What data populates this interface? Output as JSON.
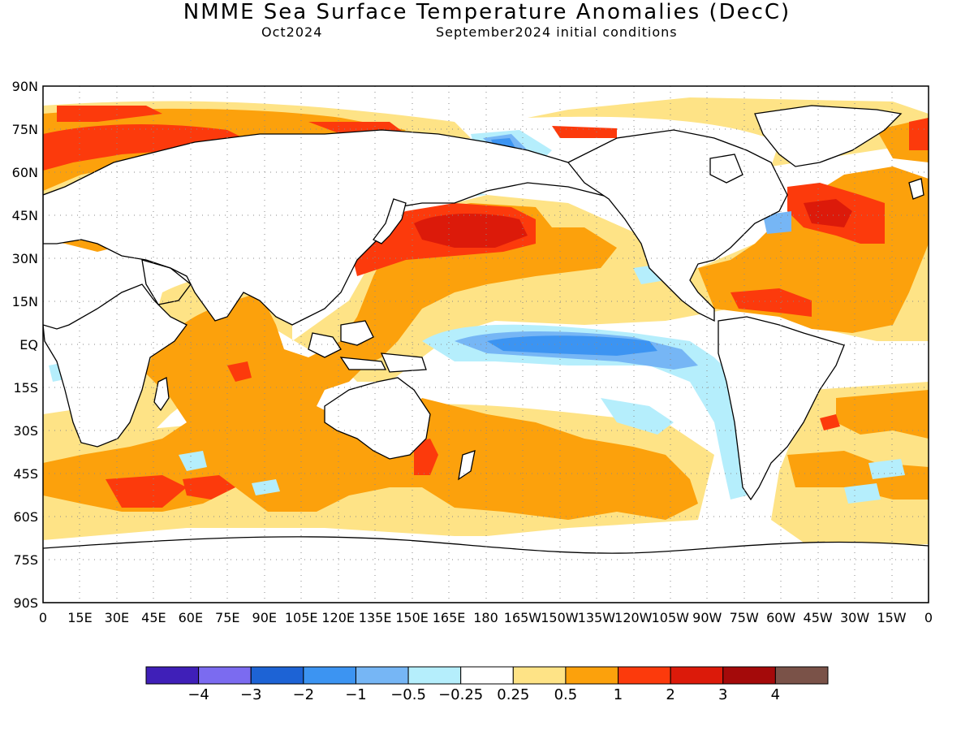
{
  "header": {
    "title": "NMME Sea Surface Temperature Anomalies (DecC)",
    "lead_month": "Oct2024",
    "initial_conditions": "September2024 initial conditions"
  },
  "map": {
    "projection": "equirectangular",
    "lon_range": [
      0,
      360
    ],
    "lat_range": [
      -90,
      90
    ],
    "gridlines": "dotted",
    "y_ticks": [
      "90N",
      "75N",
      "60N",
      "45N",
      "30N",
      "15N",
      "EQ",
      "15S",
      "30S",
      "45S",
      "60S",
      "75S",
      "90S"
    ],
    "x_ticks": [
      "0",
      "15E",
      "30E",
      "45E",
      "60E",
      "75E",
      "90E",
      "105E",
      "120E",
      "135E",
      "150E",
      "165E",
      "180",
      "165W",
      "150W",
      "135W",
      "120W",
      "105W",
      "90W",
      "75W",
      "60W",
      "45W",
      "30W",
      "15W",
      "0"
    ]
  },
  "colorbar": {
    "colors": [
      "#3f1fb8",
      "#7b6bf0",
      "#1d63d5",
      "#3c94f2",
      "#76b6f5",
      "#b5eefc",
      "#ffffff",
      "#fee386",
      "#fca10c",
      "#fc3a0c",
      "#dc1a0a",
      "#a40a0a",
      "#7a5248"
    ],
    "labels": [
      "−4",
      "−3",
      "−2",
      "−1",
      "−0.5",
      "−0.25",
      "0.25",
      "0.5",
      "1",
      "2",
      "3",
      "4"
    ]
  },
  "features": [
    {
      "name": "north-atlantic-warm-anomaly",
      "fill": "#fca10c"
    },
    {
      "name": "north-pacific-marine-heatwave",
      "fill": "#dc1a0a"
    },
    {
      "name": "equatorial-pacific-cold-tongue",
      "fill": "#3c94f2"
    },
    {
      "name": "indian-ocean-warm-anomaly",
      "fill": "#fca10c"
    },
    {
      "name": "arctic-warm-band",
      "fill": "#fc3a0c"
    },
    {
      "name": "southern-ocean-warm-belt",
      "fill": "#fca10c"
    }
  ]
}
